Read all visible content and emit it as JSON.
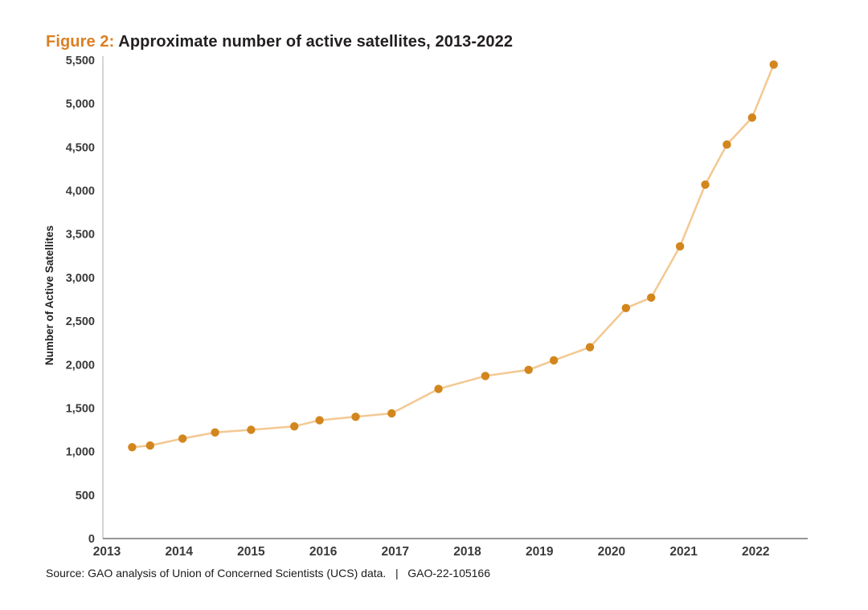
{
  "figure": {
    "label": "Figure 2:",
    "title": "Approximate number of active satellites, 2013-2022"
  },
  "source_line": "Source: GAO analysis of Union of Concerned Scientists (UCS) data.   |   GAO-22-105166",
  "colors": {
    "figure_label_orange": "#DB7F23",
    "title_text": "#231F20",
    "line": "#F3C892",
    "point": "#D3861D",
    "y_axis_line": "#C6C6C6",
    "x_axis_line": "#969696",
    "tick_text": "#3A3A3A"
  },
  "chart_data": {
    "type": "line",
    "title": "Figure 2: Approximate number of active satellites, 2013-2022",
    "xlabel": "",
    "ylabel": "Number of Active Satellites",
    "x_ticks": [
      2013,
      2014,
      2015,
      2016,
      2017,
      2018,
      2019,
      2020,
      2021,
      2022
    ],
    "y_ticks": [
      0,
      500,
      1000,
      1500,
      2000,
      2500,
      3000,
      3500,
      4000,
      4500,
      5000,
      5500
    ],
    "xlim": [
      2012.94,
      2022.72
    ],
    "ylim": [
      0,
      5500
    ],
    "grid": false,
    "legend_position": "none",
    "series": [
      {
        "name": "Active satellites",
        "x": [
          2013.35,
          2013.6,
          2014.05,
          2014.5,
          2015.0,
          2015.6,
          2015.95,
          2016.45,
          2016.95,
          2017.6,
          2018.25,
          2018.85,
          2019.2,
          2019.7,
          2020.2,
          2020.55,
          2020.95,
          2021.3,
          2021.6,
          2021.95,
          2022.25
        ],
        "y": [
          1050,
          1070,
          1150,
          1220,
          1250,
          1290,
          1360,
          1400,
          1440,
          1720,
          1870,
          1940,
          2050,
          2200,
          2650,
          2770,
          3360,
          4070,
          4530,
          4840,
          5450
        ]
      }
    ]
  }
}
